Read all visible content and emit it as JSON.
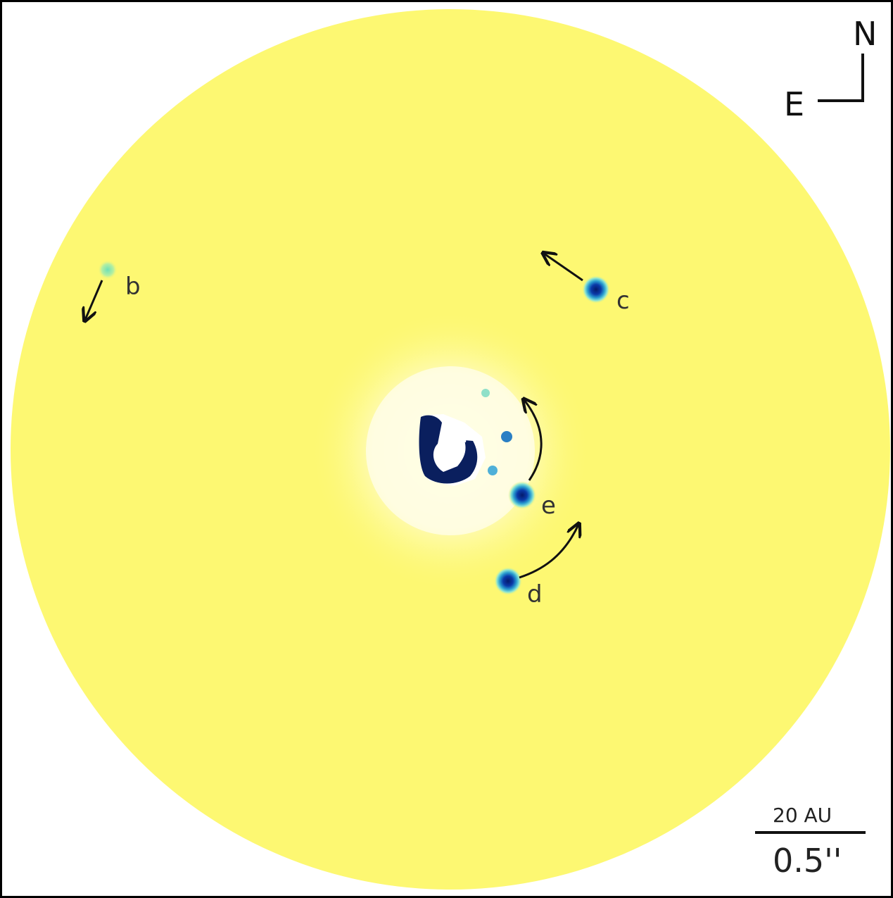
{
  "image": {
    "field_color": "#fdf872",
    "background_color": "#ffffff",
    "planet_core_color": "#062c8c",
    "planet_halo_color": "#7fe0d8"
  },
  "planets": [
    {
      "label": "b",
      "motion": "south-southwest",
      "brightness": "faint"
    },
    {
      "label": "c",
      "motion": "northwest",
      "brightness": "bright"
    },
    {
      "label": "e",
      "motion": "north (arc)",
      "brightness": "bright"
    },
    {
      "label": "d",
      "motion": "northeast (arc)",
      "brightness": "bright"
    }
  ],
  "compass": {
    "north": "N",
    "east": "E"
  },
  "scale_bar": {
    "top_label": "20 AU",
    "bottom_label": "0.5''"
  }
}
